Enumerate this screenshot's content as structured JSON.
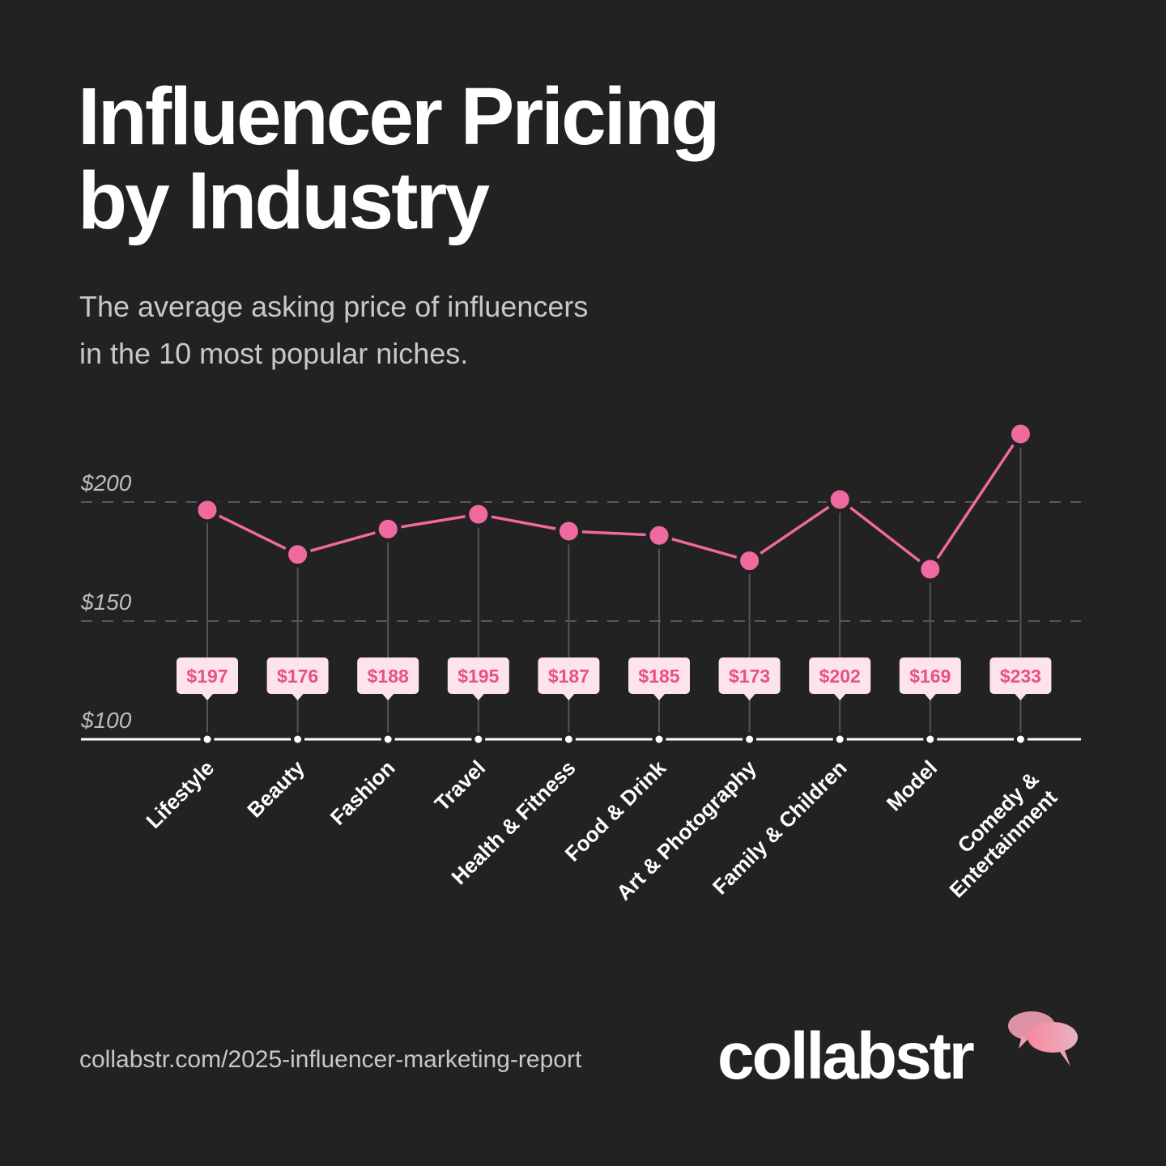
{
  "title_line1": "Influencer Pricing",
  "title_line2": "by Industry",
  "subtitle_line1": "The average asking price of influencers",
  "subtitle_line2": "in the 10 most popular niches.",
  "source": "collabstr.com/2025-influencer-marketing-report",
  "logo_text": "collabstr",
  "colors": {
    "background": "#222222",
    "line": "#f0699f",
    "label_bg": "#fde3ea",
    "label_text": "#e8508a"
  },
  "chart_data": {
    "type": "line",
    "title": "Influencer Pricing by Industry",
    "categories": [
      "Lifestyle",
      "Beauty",
      "Fashion",
      "Travel",
      "Health & Fitness",
      "Food & Drink",
      "Art & Photography",
      "Family & Children",
      "Model",
      "Comedy & Entertainment"
    ],
    "values": [
      197,
      176,
      188,
      195,
      187,
      185,
      173,
      202,
      169,
      233
    ],
    "data_labels": [
      "$197",
      "$176",
      "$188",
      "$195",
      "$187",
      "$185",
      "$173",
      "$202",
      "$169",
      "$233"
    ],
    "yticks": [
      {
        "value": 100,
        "label": "$100"
      },
      {
        "value": 150,
        "label": "$150"
      },
      {
        "value": 200,
        "label": "$200"
      }
    ],
    "ylim": [
      100,
      240
    ],
    "grid": "dashed horizontal",
    "legend": "none"
  }
}
